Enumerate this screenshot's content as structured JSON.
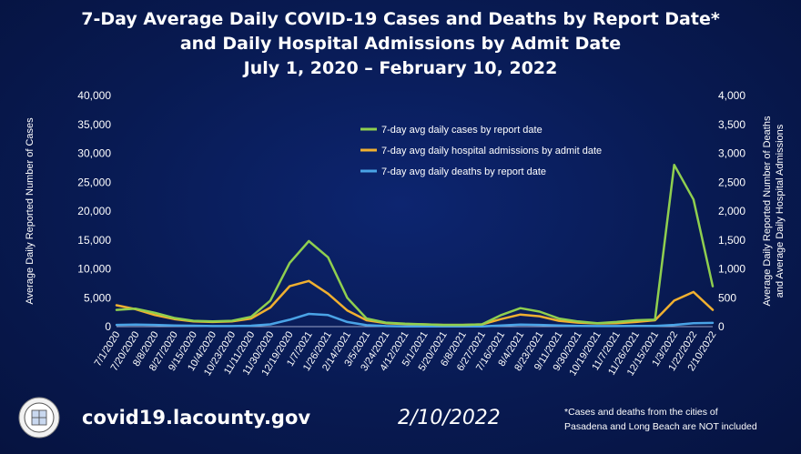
{
  "title_lines": [
    "7-Day Average Daily COVID-19 Cases and Deaths by Report Date*",
    "and Daily Hospital Admissions by Admit Date",
    "July 1, 2020 – February 10, 2022"
  ],
  "footer": {
    "url": "covid19.lacounty.gov",
    "date": "2/10/2022",
    "footnote_line1": "*Cases and deaths from the cities of",
    "footnote_line2": "Pasadena and Long Beach are NOT included"
  },
  "chart_data": {
    "type": "line",
    "title": "7-Day Average Daily COVID-19 Cases and Deaths by Report Date* and Daily Hospital Admissions by Admit Date July 1, 2020 – February 10, 2022",
    "xlabel": "",
    "ylabel": "Average Daily Reported Number of Cases",
    "y2label_lines": [
      "Average Daily Reported Number of Deaths",
      "and Average Daily Hospital Admissions"
    ],
    "ylim": [
      0,
      40000
    ],
    "y2lim": [
      0,
      4000
    ],
    "yticks": [
      "0",
      "5,000",
      "10,000",
      "15,000",
      "20,000",
      "25,000",
      "30,000",
      "35,000",
      "40,000"
    ],
    "y2ticks": [
      "0",
      "500",
      "1,000",
      "1,500",
      "2,000",
      "2,500",
      "3,000",
      "3,500",
      "4,000"
    ],
    "x_categories": [
      "7/1/2020",
      "7/20/2020",
      "8/8/2020",
      "8/27/2020",
      "9/15/2020",
      "10/4/2020",
      "10/23/2020",
      "11/11/2020",
      "11/30/2020",
      "12/19/2020",
      "1/7/2021",
      "1/26/2021",
      "2/14/2021",
      "3/5/2021",
      "3/24/2021",
      "4/12/2021",
      "5/1/2021",
      "5/20/2021",
      "6/8/2021",
      "6/27/2021",
      "7/16/2021",
      "8/4/2021",
      "8/23/2021",
      "9/11/2021",
      "9/30/2021",
      "10/19/2021",
      "11/7/2021",
      "11/26/2021",
      "12/15/2021",
      "1/3/2022",
      "1/22/2022",
      "2/10/2022"
    ],
    "legend_position": "top-center",
    "grid": false,
    "series": [
      {
        "name": "7-day avg daily cases by report date",
        "axis": "left",
        "color": "#8fcf4f",
        "values": [
          2900,
          3100,
          2400,
          1500,
          1000,
          900,
          1000,
          1700,
          4500,
          11000,
          14800,
          12000,
          5000,
          1400,
          700,
          500,
          400,
          300,
          300,
          400,
          2000,
          3200,
          2600,
          1400,
          900,
          600,
          800,
          1100,
          1200,
          28000,
          22000,
          7000
        ]
      },
      {
        "name": "7-day avg daily hospital admissions by admit date",
        "axis": "right",
        "color": "#f0b030",
        "values": [
          370,
          300,
          200,
          130,
          90,
          80,
          90,
          140,
          330,
          700,
          790,
          570,
          280,
          110,
          60,
          45,
          40,
          30,
          30,
          40,
          130,
          210,
          180,
          100,
          70,
          55,
          60,
          80,
          110,
          450,
          600,
          290
        ]
      },
      {
        "name": "7-day avg daily deaths by report date",
        "axis": "right",
        "color": "#4aa3e6",
        "values": [
          30,
          35,
          30,
          20,
          15,
          10,
          10,
          15,
          40,
          120,
          220,
          200,
          80,
          25,
          10,
          5,
          5,
          5,
          5,
          5,
          20,
          35,
          30,
          20,
          12,
          10,
          10,
          12,
          12,
          30,
          60,
          65
        ]
      }
    ]
  }
}
